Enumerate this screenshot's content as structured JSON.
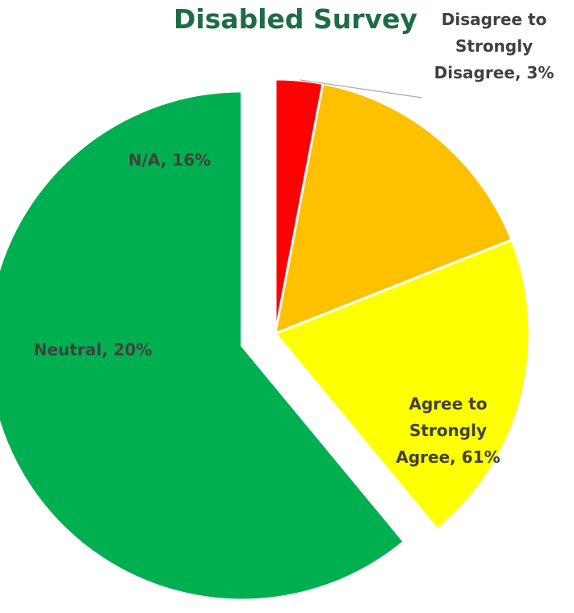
{
  "chart_data": {
    "type": "pie",
    "title": "Disabled Survey",
    "slices": [
      {
        "label": [
          "Disagree to",
          "Strongly",
          "Disagree, 3%"
        ],
        "value": 3,
        "color": "#ff0000"
      },
      {
        "label": [
          "N/A, 16%"
        ],
        "value": 16,
        "color": "#ffc000"
      },
      {
        "label": [
          "Neutral, 20%"
        ],
        "value": 20,
        "color": "#ffff00"
      },
      {
        "label": [
          "Agree to",
          "Strongly",
          "Agree, 61%"
        ],
        "value": 61,
        "color": "#00b050"
      }
    ]
  }
}
